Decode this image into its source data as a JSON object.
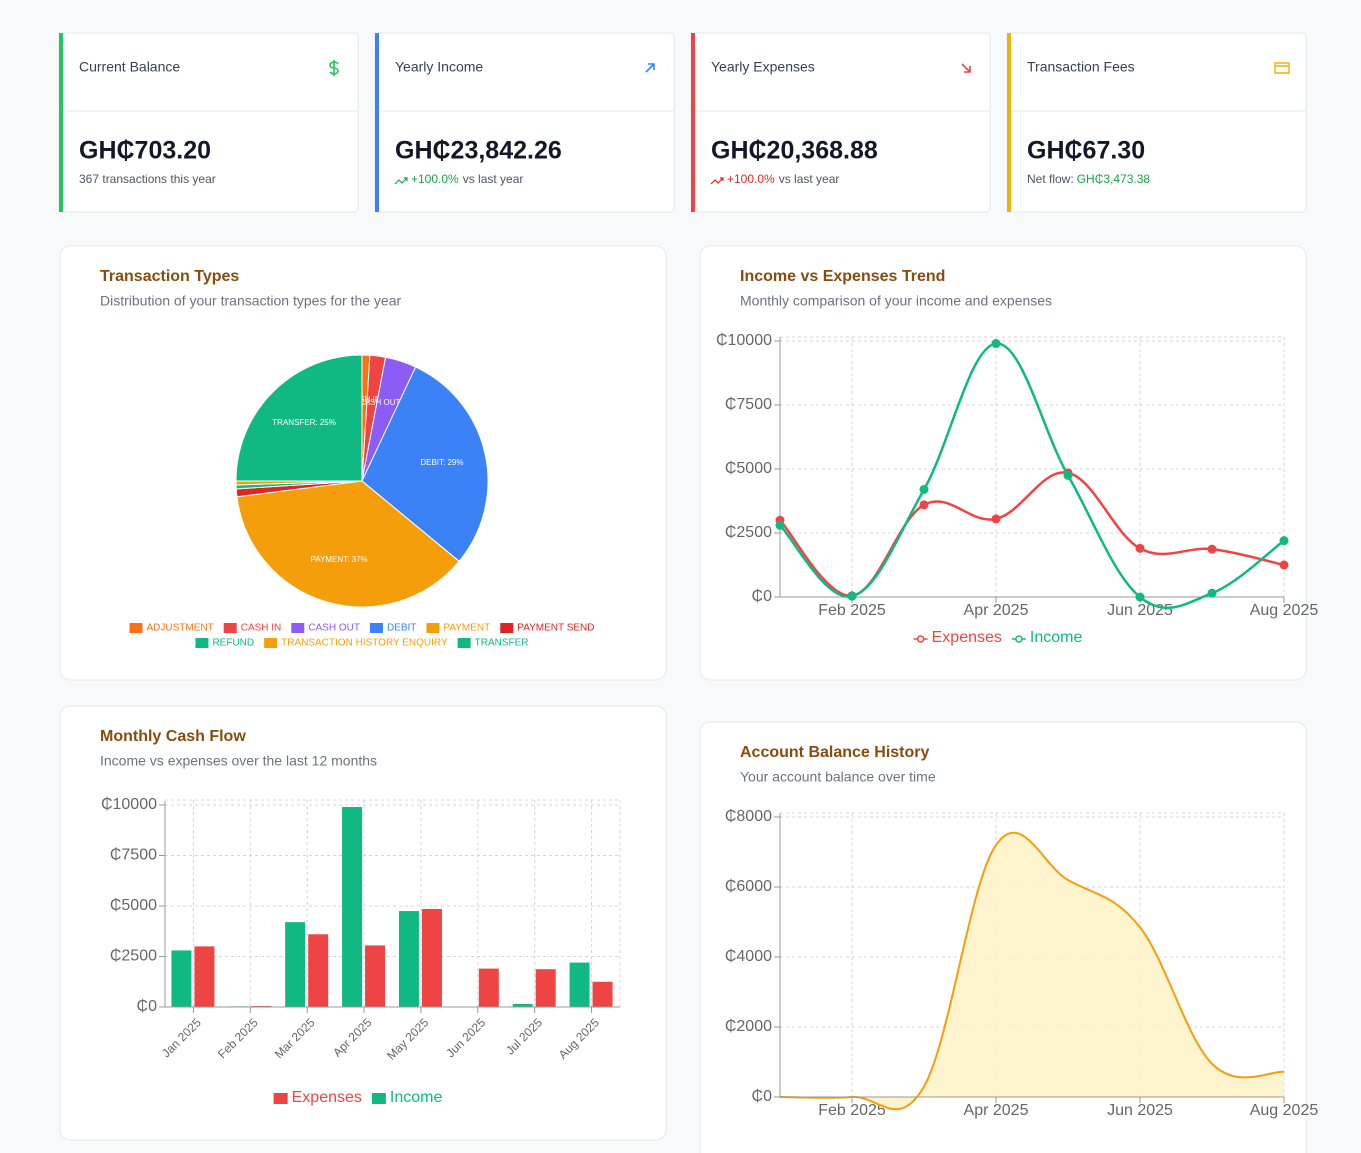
{
  "cards": [
    {
      "title": "Current Balance",
      "value": "GH₵703.20",
      "note": "367 transactions this year",
      "color": "#22c55e"
    },
    {
      "title": "Yearly Income",
      "value": "GH₵23,842.26",
      "change": "+100.0%",
      "note": "vs last year",
      "color": "#3b82f6",
      "change_color": "#16a34a"
    },
    {
      "title": "Yearly Expenses",
      "value": "GH₵20,368.88",
      "change": "+100.0%",
      "note": "vs last year",
      "color": "#ef4444",
      "change_color": "#dc2626"
    },
    {
      "title": "Transaction Fees",
      "value": "GH₵67.30",
      "note": "Net flow:",
      "net": "GH₵3,473.38",
      "color": "#eab308",
      "net_color": "#16a34a"
    }
  ],
  "chart_data": [
    {
      "type": "pie",
      "title": "Transaction Types",
      "subtitle": "Distribution of your transaction types for the year",
      "categories": [
        "ADJUSTMENT",
        "CASH IN",
        "CASH OUT",
        "DEBIT",
        "PAYMENT",
        "PAYMENT SEND",
        "REFUND",
        "TRANSACTION HISTORY ENQUIRY",
        "TRANSFER"
      ],
      "values": [
        1,
        2,
        4,
        29,
        37,
        1,
        0.5,
        0.5,
        25
      ],
      "value_labels": [
        null,
        "CASH IN: 2%",
        "CASH OUT: 4%",
        "DEBIT: 29%",
        "PAYMENT: 37%",
        null,
        null,
        null,
        "TRANSFER: 25%"
      ],
      "colors": [
        "#f97316",
        "#ef4444",
        "#8b5cf6",
        "#3b82f6",
        "#f59e0b",
        "#dc2626",
        "#10b981",
        "#f59e0b",
        "#10b981"
      ]
    },
    {
      "type": "line",
      "title": "Income vs Expenses Trend",
      "subtitle": "Monthly comparison of your income and expenses",
      "categories": [
        null,
        "Feb 2025",
        null,
        "Apr 2025",
        null,
        "Jun 2025",
        null,
        "Aug 2025"
      ],
      "series": [
        {
          "name": "Expenses",
          "color": "#ef4444",
          "values": [
            3000,
            50,
            3600,
            3050,
            4850,
            1900,
            1870,
            1250
          ]
        },
        {
          "name": "Income",
          "color": "#10b981",
          "values": [
            2800,
            30,
            4200,
            9900,
            4750,
            0,
            150,
            2200
          ]
        }
      ],
      "ylim": [
        0,
        10000
      ],
      "yticks": [
        {
          "value": 0,
          "label": "₵0"
        },
        {
          "value": 2500,
          "label": "₵2500"
        },
        {
          "value": 5000,
          "label": "₵5000"
        },
        {
          "value": 7500,
          "label": "₵7500"
        },
        {
          "value": 10000,
          "label": "₵10000"
        }
      ],
      "grid": true
    },
    {
      "type": "bar",
      "title": "Monthly Cash Flow",
      "subtitle": "Income vs expenses over the last 12 months",
      "categories": [
        "Jan 2025",
        "Feb 2025",
        "Mar 2025",
        "Apr 2025",
        "May 2025",
        "Jun 2025",
        "Jul 2025",
        "Aug 2025"
      ],
      "series": [
        {
          "name": "Expenses",
          "color": "#ef4444",
          "values": [
            3000,
            50,
            3600,
            3050,
            4850,
            1900,
            1870,
            1250
          ]
        },
        {
          "name": "Income",
          "color": "#10b981",
          "values": [
            2800,
            30,
            4200,
            9900,
            4750,
            0,
            150,
            2200
          ]
        }
      ],
      "ylim": [
        0,
        10000
      ],
      "yticks": [
        {
          "value": 0,
          "label": "₵0"
        },
        {
          "value": 2500,
          "label": "₵2500"
        },
        {
          "value": 5000,
          "label": "₵5000"
        },
        {
          "value": 7500,
          "label": "₵7500"
        },
        {
          "value": 10000,
          "label": "₵10000"
        }
      ],
      "grid": true
    },
    {
      "type": "area",
      "title": "Account Balance History",
      "subtitle": "Your account balance over time",
      "categories": [
        null,
        "Feb 2025",
        null,
        "Apr 2025",
        null,
        "Jun 2025",
        null,
        "Aug 2025"
      ],
      "values": [
        0,
        0,
        300,
        7200,
        6200,
        4850,
        950,
        720
      ],
      "color": "#f59e0b",
      "fill": "#fef3c7",
      "ylim": [
        0,
        8000
      ],
      "yticks": [
        {
          "value": 0,
          "label": "₵0"
        },
        {
          "value": 2000,
          "label": "₵2000"
        },
        {
          "value": 4000,
          "label": "₵4000"
        },
        {
          "value": 6000,
          "label": "₵6000"
        },
        {
          "value": 8000,
          "label": "₵8000"
        }
      ],
      "grid": true
    }
  ]
}
